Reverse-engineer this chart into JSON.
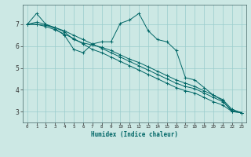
{
  "xlabel": "Humidex (Indice chaleur)",
  "background_color": "#cce8e4",
  "grid_color": "#99cccc",
  "line_color": "#006666",
  "xlim": [
    -0.5,
    23.5
  ],
  "ylim": [
    2.5,
    7.9
  ],
  "xticks": [
    0,
    1,
    2,
    3,
    4,
    5,
    6,
    7,
    8,
    9,
    10,
    11,
    12,
    13,
    14,
    15,
    16,
    17,
    18,
    19,
    20,
    21,
    22,
    23
  ],
  "yticks": [
    3,
    4,
    5,
    6,
    7
  ],
  "series": [
    [
      7.0,
      7.5,
      7.0,
      6.8,
      6.5,
      5.85,
      5.7,
      6.1,
      6.2,
      6.2,
      7.05,
      7.2,
      7.5,
      6.7,
      6.3,
      6.2,
      5.8,
      4.55,
      4.45,
      4.1,
      3.75,
      3.5,
      3.0,
      2.95
    ],
    [
      7.0,
      7.1,
      7.0,
      6.85,
      6.65,
      6.3,
      6.15,
      6.05,
      5.95,
      5.8,
      5.6,
      5.4,
      5.25,
      5.05,
      4.85,
      4.65,
      4.45,
      4.3,
      4.15,
      3.95,
      3.75,
      3.55,
      3.1,
      2.95
    ],
    [
      7.0,
      7.0,
      6.95,
      6.85,
      6.7,
      6.5,
      6.3,
      6.1,
      5.9,
      5.7,
      5.5,
      5.3,
      5.1,
      4.9,
      4.7,
      4.5,
      4.3,
      4.15,
      4.05,
      3.85,
      3.65,
      3.45,
      3.05,
      2.95
    ],
    [
      7.0,
      7.0,
      6.9,
      6.75,
      6.55,
      6.35,
      6.1,
      5.85,
      5.7,
      5.5,
      5.3,
      5.1,
      4.9,
      4.7,
      4.5,
      4.3,
      4.1,
      3.95,
      3.85,
      3.65,
      3.45,
      3.3,
      3.0,
      2.95
    ]
  ]
}
